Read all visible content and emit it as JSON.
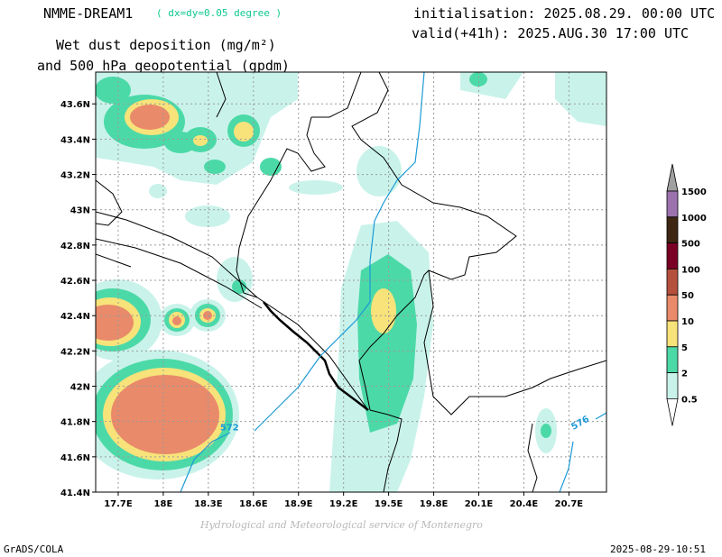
{
  "header": {
    "model": "NMME-DREAM1",
    "resolution": "( dx=dy=0.05 degree )",
    "title_line1": "Wet dust deposition (mg/m²)",
    "title_line2": "and 500 hPa geopotential (gpdm)",
    "initialisation": "initialisation: 2025.08.29. 00:00 UTC",
    "valid": "valid(+41h): 2025.AUG.30 17:00 UTC"
  },
  "footer": {
    "credit": "Hydrological and Meteorological service of Montenegro",
    "software": "GrADS/COLA",
    "timestamp": "2025-08-29-10:51"
  },
  "chart_data": {
    "type": "map",
    "lon_range": [
      17.55,
      20.95
    ],
    "lat_range": [
      41.4,
      43.78
    ],
    "grid": true,
    "x_ticks": [
      "17.7E",
      "18E",
      "18.3E",
      "18.6E",
      "18.9E",
      "19.2E",
      "19.5E",
      "19.8E",
      "20.1E",
      "20.4E",
      "20.7E"
    ],
    "y_ticks": [
      "43.6N",
      "43.4N",
      "43.2N",
      "43N",
      "42.8N",
      "42.6N",
      "42.4N",
      "42.2N",
      "42N",
      "41.8N",
      "41.6N",
      "41.4N"
    ],
    "legend": {
      "placement": "right",
      "levels": [
        "1500",
        "1000",
        "500",
        "100",
        "50",
        "10",
        "5",
        "2",
        "0.5"
      ],
      "colors": [
        "#a0a0a0",
        "#9b72ae",
        "#3d2612",
        "#7a0026",
        "#b5503c",
        "#e98a6a",
        "#f7e37a",
        "#4cd9a8",
        "#c9f3ea"
      ]
    },
    "contours": [
      {
        "value": "572",
        "label_lon": 18.45,
        "label_lat": 41.77
      },
      {
        "value": "576",
        "label_lon": 20.78,
        "label_lat": 41.8
      }
    ]
  }
}
